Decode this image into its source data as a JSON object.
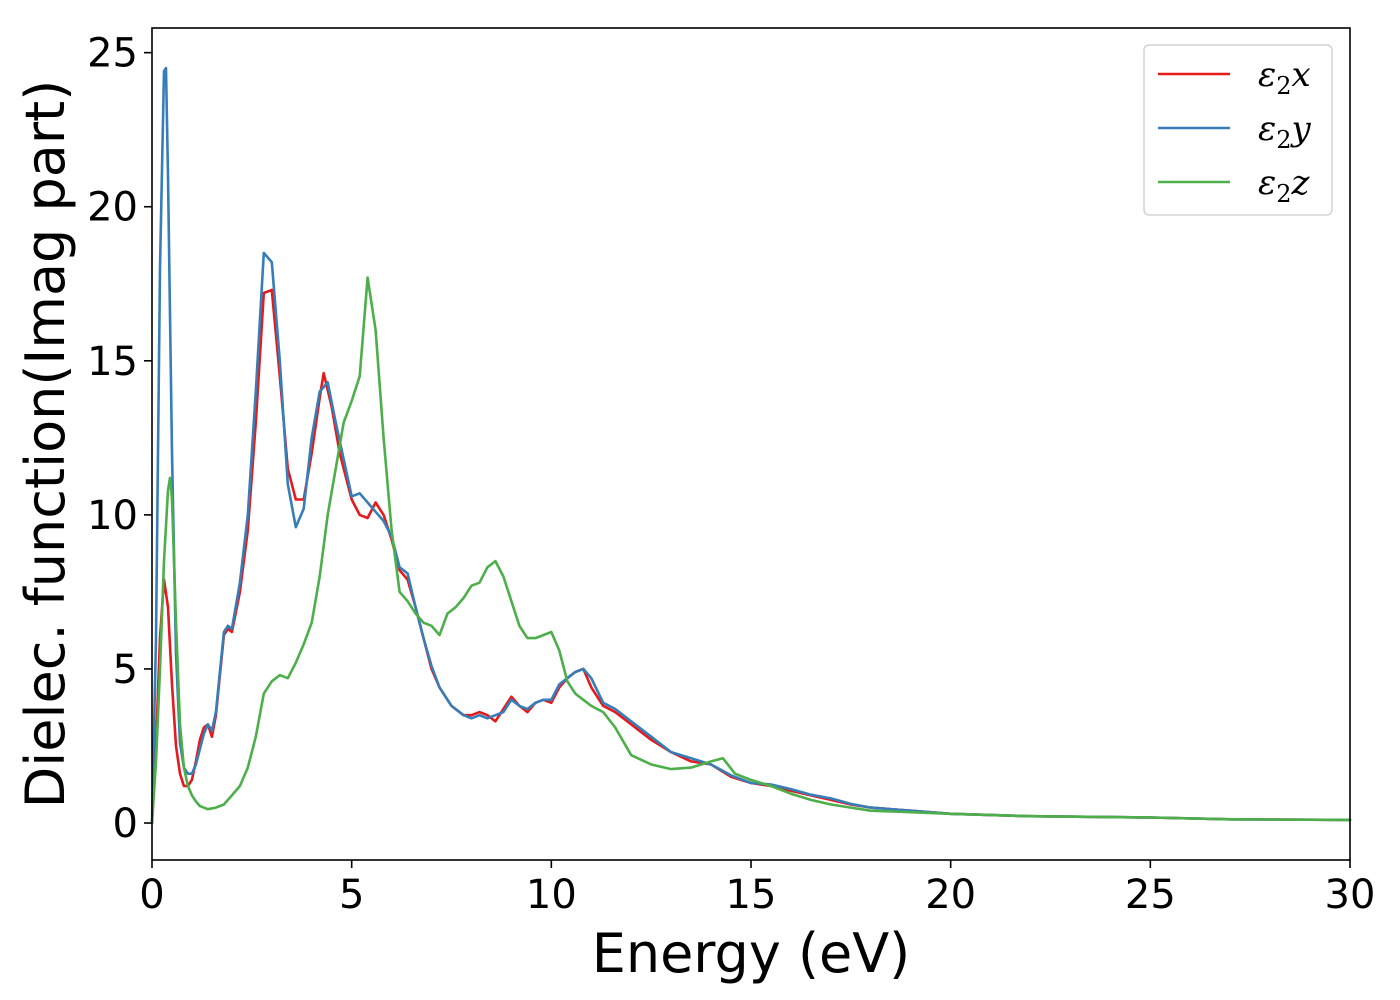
{
  "chart_data": {
    "type": "line",
    "title": "",
    "xlabel": "Energy (eV)",
    "ylabel": "Dielec. function(Imag part)",
    "xlim": [
      0,
      30
    ],
    "ylim": [
      -1.2,
      25.8
    ],
    "xticks": [
      0,
      5,
      10,
      15,
      20,
      25,
      30
    ],
    "yticks": [
      0,
      5,
      10,
      15,
      20,
      25
    ],
    "grid": false,
    "legend_position": "top-right",
    "series": [
      {
        "name": "ε2x",
        "legend_main": "ε",
        "legend_sub": "2",
        "legend_var": "x",
        "color": "#e41a1c",
        "x": [
          0,
          0.1,
          0.2,
          0.3,
          0.4,
          0.5,
          0.6,
          0.7,
          0.8,
          0.9,
          1.0,
          1.1,
          1.2,
          1.3,
          1.4,
          1.5,
          1.6,
          1.7,
          1.8,
          1.9,
          2.0,
          2.2,
          2.4,
          2.6,
          2.8,
          3.0,
          3.2,
          3.4,
          3.6,
          3.8,
          4.0,
          4.2,
          4.3,
          4.5,
          4.7,
          5.0,
          5.2,
          5.4,
          5.6,
          5.8,
          6.0,
          6.2,
          6.4,
          6.6,
          6.8,
          7.0,
          7.2,
          7.5,
          7.8,
          8.0,
          8.2,
          8.4,
          8.6,
          8.8,
          9.0,
          9.2,
          9.4,
          9.6,
          9.8,
          10.0,
          10.2,
          10.4,
          10.6,
          10.8,
          11.0,
          11.3,
          11.6,
          12.0,
          12.5,
          13.0,
          13.5,
          14.0,
          14.5,
          15.0,
          15.5,
          16.0,
          16.5,
          17.0,
          17.5,
          18.0,
          19.0,
          20.0,
          22.0,
          25.0,
          27.0,
          30.0
        ],
        "y": [
          0.0,
          2.5,
          6.0,
          7.9,
          7.0,
          4.5,
          2.5,
          1.6,
          1.2,
          1.2,
          1.4,
          2.0,
          2.7,
          3.1,
          3.2,
          2.8,
          3.5,
          4.8,
          6.1,
          6.3,
          6.2,
          7.5,
          9.5,
          13.0,
          17.2,
          17.3,
          14.5,
          11.5,
          10.5,
          10.5,
          12.0,
          13.8,
          14.6,
          13.5,
          12.0,
          10.5,
          10.0,
          9.9,
          10.4,
          10.0,
          9.2,
          8.2,
          7.9,
          7.0,
          6.0,
          5.0,
          4.4,
          3.8,
          3.5,
          3.5,
          3.6,
          3.5,
          3.3,
          3.7,
          4.1,
          3.8,
          3.6,
          3.9,
          4.0,
          3.9,
          4.4,
          4.7,
          4.9,
          5.0,
          4.4,
          3.8,
          3.6,
          3.2,
          2.7,
          2.3,
          2.0,
          1.9,
          1.5,
          1.3,
          1.2,
          1.05,
          0.9,
          0.75,
          0.6,
          0.5,
          0.4,
          0.3,
          0.22,
          0.18,
          0.12,
          0.1
        ]
      },
      {
        "name": "ε2y",
        "legend_main": "ε",
        "legend_sub": "2",
        "legend_var": "y",
        "color": "#377eb8",
        "x": [
          0,
          0.1,
          0.2,
          0.3,
          0.35,
          0.4,
          0.5,
          0.6,
          0.7,
          0.8,
          0.9,
          1.0,
          1.1,
          1.2,
          1.3,
          1.4,
          1.5,
          1.6,
          1.7,
          1.8,
          1.9,
          2.0,
          2.2,
          2.4,
          2.6,
          2.8,
          3.0,
          3.2,
          3.4,
          3.6,
          3.8,
          4.0,
          4.2,
          4.4,
          4.6,
          4.8,
          5.0,
          5.2,
          5.4,
          5.6,
          5.8,
          6.0,
          6.2,
          6.4,
          6.6,
          6.8,
          7.0,
          7.2,
          7.5,
          7.8,
          8.0,
          8.2,
          8.4,
          8.6,
          8.8,
          9.0,
          9.2,
          9.4,
          9.6,
          9.8,
          10.0,
          10.2,
          10.4,
          10.6,
          10.8,
          11.0,
          11.3,
          11.6,
          12.0,
          12.5,
          13.0,
          13.5,
          14.0,
          14.5,
          15.0,
          15.5,
          16.0,
          16.5,
          17.0,
          17.5,
          18.0,
          19.0,
          20.0,
          22.0,
          25.0,
          27.0,
          30.0
        ],
        "y": [
          0.0,
          6.0,
          18.0,
          24.4,
          24.5,
          21.0,
          12.0,
          5.5,
          2.6,
          1.8,
          1.6,
          1.6,
          1.9,
          2.4,
          2.9,
          3.2,
          3.0,
          3.6,
          4.9,
          6.2,
          6.4,
          6.3,
          7.8,
          10.0,
          14.0,
          18.5,
          18.2,
          15.0,
          11.0,
          9.6,
          10.2,
          12.5,
          14.0,
          14.3,
          13.0,
          11.8,
          10.6,
          10.7,
          10.4,
          10.1,
          9.8,
          9.3,
          8.3,
          8.1,
          7.0,
          6.0,
          5.1,
          4.4,
          3.8,
          3.5,
          3.4,
          3.5,
          3.4,
          3.5,
          3.6,
          4.0,
          3.8,
          3.7,
          3.9,
          4.0,
          4.0,
          4.5,
          4.7,
          4.9,
          5.0,
          4.7,
          3.9,
          3.7,
          3.3,
          2.8,
          2.3,
          2.1,
          1.9,
          1.55,
          1.3,
          1.25,
          1.1,
          0.92,
          0.8,
          0.62,
          0.5,
          0.4,
          0.3,
          0.22,
          0.18,
          0.12,
          0.1
        ]
      },
      {
        "name": "ε2z",
        "legend_main": "ε",
        "legend_sub": "2",
        "legend_var": "z",
        "color": "#4daf4a",
        "x": [
          0,
          0.1,
          0.2,
          0.3,
          0.4,
          0.45,
          0.5,
          0.6,
          0.7,
          0.8,
          0.9,
          1.0,
          1.1,
          1.2,
          1.4,
          1.6,
          1.8,
          2.0,
          2.2,
          2.4,
          2.6,
          2.8,
          3.0,
          3.2,
          3.4,
          3.6,
          3.8,
          4.0,
          4.2,
          4.4,
          4.6,
          4.8,
          5.0,
          5.2,
          5.4,
          5.6,
          5.8,
          6.0,
          6.2,
          6.4,
          6.6,
          6.8,
          7.0,
          7.2,
          7.4,
          7.6,
          7.8,
          8.0,
          8.2,
          8.4,
          8.6,
          8.8,
          9.0,
          9.2,
          9.4,
          9.6,
          9.8,
          10.0,
          10.2,
          10.4,
          10.6,
          10.8,
          11.0,
          11.3,
          11.6,
          12.0,
          12.5,
          13.0,
          13.5,
          14.0,
          14.3,
          14.6,
          15.0,
          15.5,
          16.0,
          16.5,
          17.0,
          17.5,
          18.0,
          19.0,
          20.0,
          22.0,
          25.0,
          27.0,
          30.0
        ],
        "y": [
          0.0,
          2.0,
          5.0,
          8.5,
          10.8,
          11.2,
          10.5,
          6.5,
          3.2,
          1.8,
          1.2,
          0.9,
          0.7,
          0.55,
          0.45,
          0.5,
          0.6,
          0.9,
          1.2,
          1.8,
          2.8,
          4.2,
          4.6,
          4.8,
          4.7,
          5.2,
          5.8,
          6.5,
          8.0,
          10.0,
          11.5,
          13.0,
          13.7,
          14.5,
          17.7,
          16.0,
          12.5,
          9.5,
          7.5,
          7.2,
          6.8,
          6.5,
          6.4,
          6.1,
          6.8,
          7.0,
          7.3,
          7.7,
          7.8,
          8.3,
          8.5,
          8.0,
          7.2,
          6.4,
          6.0,
          6.0,
          6.1,
          6.2,
          5.6,
          4.6,
          4.2,
          4.0,
          3.8,
          3.6,
          3.1,
          2.2,
          1.9,
          1.75,
          1.8,
          2.0,
          2.1,
          1.6,
          1.4,
          1.2,
          0.95,
          0.75,
          0.6,
          0.5,
          0.4,
          0.35,
          0.3,
          0.22,
          0.18,
          0.12,
          0.1
        ]
      }
    ]
  }
}
